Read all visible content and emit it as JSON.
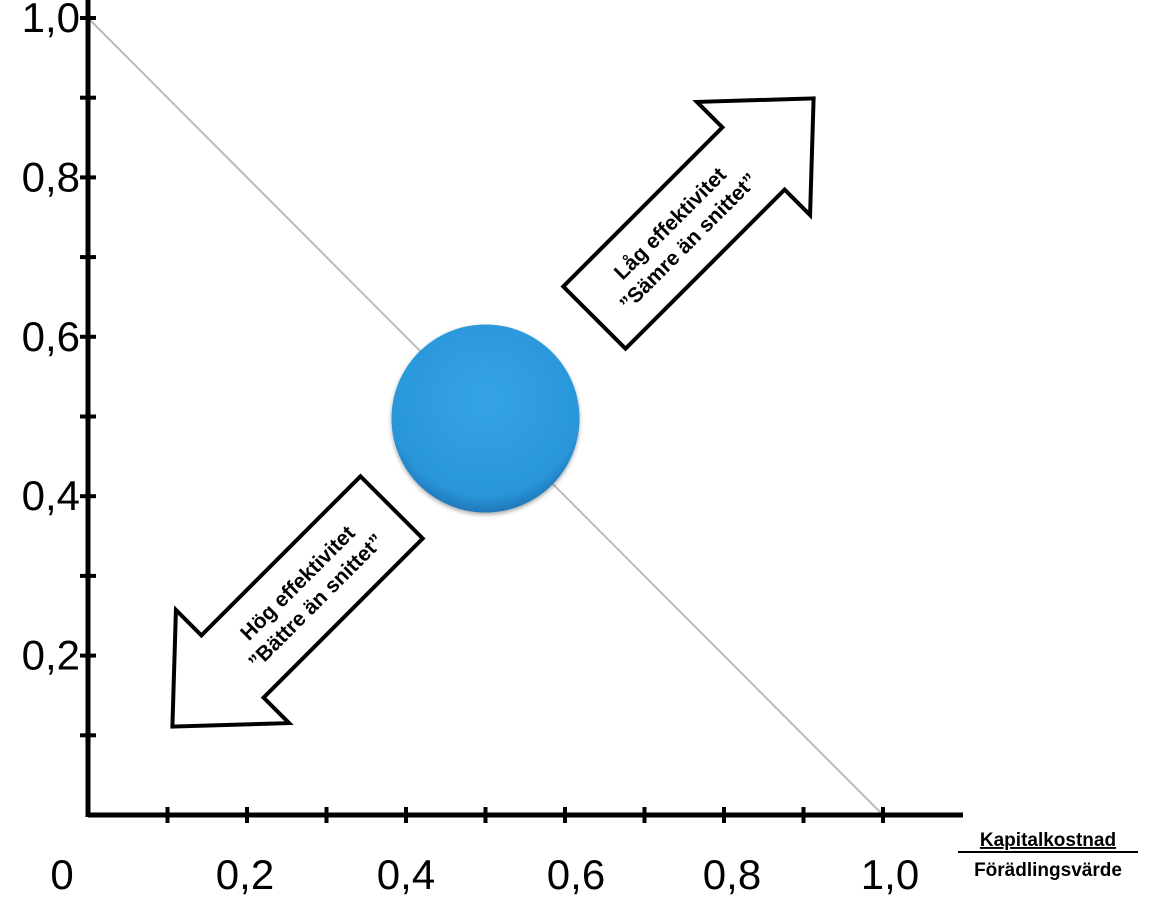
{
  "chart_data": {
    "type": "scatter",
    "x_range": [
      0,
      1.0
    ],
    "y_range": [
      0,
      1.0
    ],
    "x_ticks": [
      "0",
      "0,2",
      "0,4",
      "0,6",
      "0,8",
      "1,0"
    ],
    "y_ticks": [
      "0,2",
      "0,4",
      "0,6",
      "0,8",
      "1,0"
    ],
    "x_tick_values": [
      0,
      0.2,
      0.4,
      0.6,
      0.8,
      1.0
    ],
    "y_tick_values": [
      0.2,
      0.4,
      0.6,
      0.8,
      1.0
    ],
    "minor_tick_step": 0.1,
    "xlabel_numerator": "Kapitalkostnad",
    "xlabel_denominator": "Förädlingsvärde",
    "reference_line": {
      "x": [
        0,
        1.0
      ],
      "y": [
        1.0,
        0
      ]
    },
    "point": {
      "x": 0.5,
      "y": 0.5,
      "color": "#2d99dd"
    },
    "grid": false
  },
  "arrows": {
    "up_right": {
      "line1": "Låg effektivitet",
      "line2": "”Sämre än snittet”"
    },
    "down_left": {
      "line1": "Hög effektivitet",
      "line2": "”Bättre än snittet”"
    }
  },
  "colors": {
    "axis": "#000000",
    "reference_line": "#bbbbbb",
    "circle": "#2d99dd"
  }
}
